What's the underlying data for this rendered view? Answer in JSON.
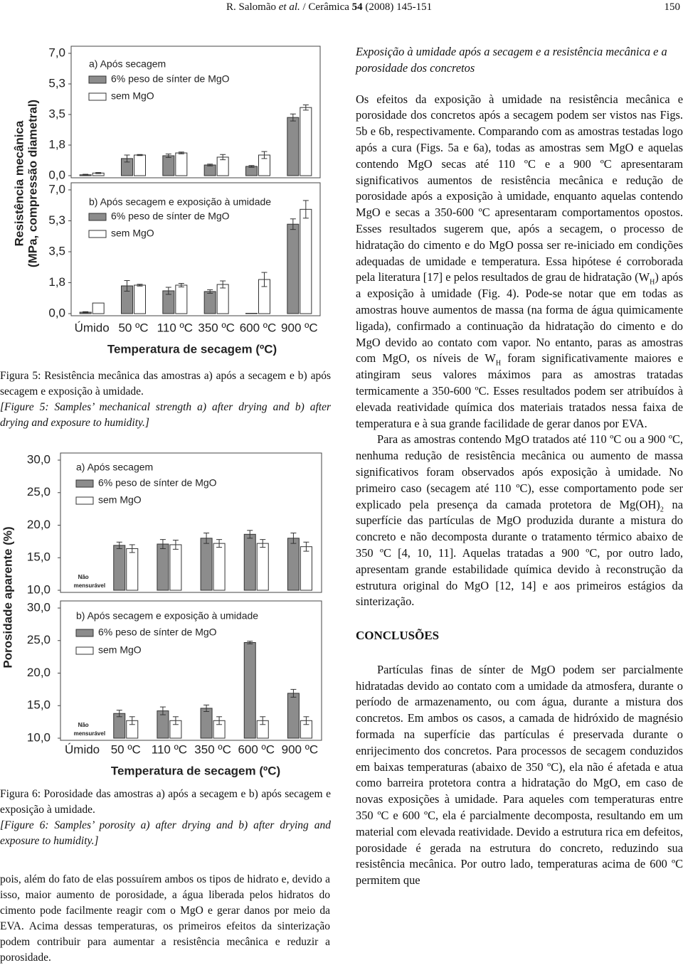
{
  "header": {
    "parts": [
      "R. Salomão ",
      "et al.",
      " / Cerâmica ",
      "54",
      " (2008) 145-151"
    ],
    "page": "150"
  },
  "chart_data": [
    {
      "type": "bar",
      "ylabel": [
        "Resistência mecânica",
        "(MPa, compressão diametral)"
      ],
      "xlabel": "Temperatura de secagem (ºC)",
      "categories": [
        "Úmido",
        "50 ºC",
        "110 ºC",
        "350 ºC",
        "600 ºC",
        "900 ºC"
      ],
      "panels": [
        {
          "title": "a) Após secagem",
          "ylim": [
            0,
            7
          ],
          "yticks": [
            {
              "value": 7,
              "label": "7,0"
            },
            {
              "value": 5.25,
              "label": "5,3"
            },
            {
              "value": 3.5,
              "label": "3,5"
            },
            {
              "value": 1.75,
              "label": "1,8"
            },
            {
              "value": 0,
              "label": "0,0"
            }
          ],
          "series": [
            {
              "name": "6% peso de sínter de MgO",
              "color": "#8c8c8c",
              "values": [
                0.05,
                0.98,
                1.14,
                0.61,
                0.53,
                3.33
              ],
              "errors": [
                0.03,
                0.2,
                0.1,
                0.05,
                0.05,
                0.2
              ]
            },
            {
              "name": "sem MgO",
              "color": "#ffffff",
              "values": [
                0.15,
                1.18,
                1.3,
                1.06,
                1.18,
                3.9
              ],
              "errors": [
                0.03,
                0.03,
                0.05,
                0.15,
                0.2,
                0.15
              ]
            }
          ]
        },
        {
          "title": "b) Após secagem e exposição à umidade",
          "ylim": [
            0,
            7
          ],
          "yticks": [
            {
              "value": 7,
              "label": "7,0"
            },
            {
              "value": 5.25,
              "label": "5,3"
            },
            {
              "value": 3.5,
              "label": "3,5"
            },
            {
              "value": 1.75,
              "label": "1,8"
            },
            {
              "value": 0,
              "label": "0,0"
            }
          ],
          "series": [
            {
              "name": "6% peso de sínter de MgO",
              "color": "#8c8c8c",
              "values": [
                0.08,
                1.57,
                1.29,
                1.25,
                0.02,
                5.06
              ],
              "errors": [
                0.03,
                0.3,
                0.2,
                0.1,
                null,
                0.3
              ]
            },
            {
              "name": "sem MgO",
              "color": "#ffffff",
              "values": [
                0.6,
                1.61,
                1.61,
                1.65,
                1.93,
                5.9
              ],
              "errors": [
                null,
                0.05,
                0.1,
                0.2,
                0.4,
                0.5
              ]
            }
          ]
        }
      ]
    },
    {
      "type": "bar",
      "ylabel": [
        "Porosidade aparente (%)"
      ],
      "xlabel": "Temperatura de secagem (ºC)",
      "categories": [
        "Úmido",
        "50 ºC",
        "110 ºC",
        "350 ºC",
        "600 ºC",
        "900 ºC"
      ],
      "panels": [
        {
          "title": "a) Após secagem",
          "ylim": [
            10,
            30
          ],
          "annotation": [
            "Não",
            "mensurável"
          ],
          "yticks": [
            {
              "value": 30,
              "label": "30,0"
            },
            {
              "value": 25,
              "label": "25,0"
            },
            {
              "value": 20,
              "label": "20,0"
            },
            {
              "value": 15,
              "label": "15,0"
            },
            {
              "value": 10,
              "label": "10,0"
            }
          ],
          "series": [
            {
              "name": "6% peso de sínter de MgO",
              "color": "#8c8c8c",
              "values": [
                null,
                16.9,
                17.1,
                18.0,
                18.6,
                18.0
              ],
              "errors": [
                null,
                0.5,
                0.7,
                0.8,
                0.6,
                0.8
              ]
            },
            {
              "name": "sem MgO",
              "color": "#ffffff",
              "values": [
                null,
                16.4,
                17.0,
                17.2,
                17.2,
                16.7
              ],
              "errors": [
                null,
                0.6,
                0.7,
                0.6,
                0.6,
                0.7
              ]
            }
          ]
        },
        {
          "title": "b) Após secagem e exposição à umidade",
          "ylim": [
            10,
            30
          ],
          "annotation": [
            "Não",
            "mensurável"
          ],
          "yticks": [
            {
              "value": 30,
              "label": "30,0"
            },
            {
              "value": 25,
              "label": "25,0"
            },
            {
              "value": 20,
              "label": "20,0"
            },
            {
              "value": 15,
              "label": "15,0"
            },
            {
              "value": 10,
              "label": "10,0"
            }
          ],
          "series": [
            {
              "name": "6% peso de sínter de MgO",
              "color": "#8c8c8c",
              "values": [
                null,
                13.8,
                14.2,
                14.6,
                24.7,
                16.9
              ],
              "errors": [
                null,
                0.5,
                0.6,
                0.5,
                0.2,
                0.6
              ]
            },
            {
              "name": "sem MgO",
              "color": "#ffffff",
              "values": [
                null,
                12.7,
                12.7,
                12.7,
                12.7,
                12.7
              ],
              "errors": [
                null,
                0.6,
                0.6,
                0.6,
                0.6,
                0.6
              ]
            }
          ]
        }
      ]
    }
  ],
  "captions": [
    {
      "pt": "Figura 5: Resistência mecânica das amostras a) após a secagem e b) após secagem e exposição à umidade.",
      "en": "[Figure 5: Samples’ mechanical strength a) after drying and b) after drying and exposure to humidity.]"
    },
    {
      "pt": "Figura 6: Porosidade das amostras a) após a secagem e b) após secagem e exposição à umidade.",
      "en": "[Figure 6: Samples’ porosity a) after drying and b) after drying and exposure to humidity.]"
    }
  ],
  "left_column": {
    "paragraphs": [
      [
        "pois, além do fato de elas possuírem ambos os tipos de hidrato e, devido a isso, maior aumento de porosidade, a água liberada pelos hidratos do cimento pode facilmente reagir com o MgO e gerar danos por meio da EVA. Acima dessas temperaturas, os primeiros efeitos da sinterização podem contribuir para aumentar a resistência mecânica e reduzir a porosidade."
      ]
    ]
  },
  "right_column": {
    "section_title": "Exposição à umidade após a secagem e a resistência mecânica e a porosidade dos concretos",
    "paragraphs": [
      [
        "Os efeitos da exposição à umidade na resistência mecânica e porosidade dos concretos após a secagem podem ser vistos nas Figs. 5b e 6b, respectivamente. Comparando com as amostras testadas logo após a cura (Figs. 5a e 6a), todas as amostras sem MgO e aquelas contendo MgO secas até 110 ºC e a 900 ºC apresentaram significativos aumentos de resistência mecânica e redução de porosidade após a exposição à umidade, enquanto aquelas contendo MgO e secas a 350-600 ºC apresentaram comportamentos opostos. Esses resultados sugerem que, após a secagem, o processo de hidratação do cimento e do MgO possa ser re-iniciado em condições adequadas de umidade e temperatura. Essa hipótese é corroborada pela literatura [17] e pelos resultados de grau de hidratação (W",
        {
          "sub": "H"
        },
        ") após a exposição à umidade (Fig. 4). Pode-se notar que em todas as amostras houve aumentos de massa (na forma de água quimicamente ligada), confirmado a continuação da hidratação do cimento e do MgO devido ao contato com vapor. No entanto, paras as amostras com MgO, os níveis de W",
        {
          "sub": "H"
        },
        " foram significativamente maiores e atingiram seus valores máximos para as amostras tratadas termicamente a 350-600 ºC. Esses resultados podem ser atribuídos à elevada reatividade química dos materiais tratados nessa faixa de temperatura e à sua grande facilidade de gerar danos por EVA."
      ],
      [
        "Para as amostras contendo MgO tratados até 110 ºC ou a 900 ºC, nenhuma redução de resistência mecânica ou aumento de massa significativos foram observados após exposição à umidade. No primeiro caso (secagem até 110 ºC), esse comportamento pode ser explicado pela presença da camada protetora de Mg(OH)",
        {
          "sub": "2"
        },
        " na superfície das partículas de MgO produzida durante a mistura do concreto e não decomposta durante o tratamento térmico abaixo de 350 ºC [4, 10, 11]. Aquelas tratadas a 900 ºC, por outro lado, apresentam grande estabilidade química devido à reconstrução da estrutura original do MgO [12, 14] e aos primeiros estágios da sinterização."
      ]
    ],
    "heading": "CONCLUSÕES",
    "conclusion": [
      [
        "Partículas finas de sínter de MgO podem ser parcialmente hidratadas devido ao contato com a umidade da atmosfera, durante o período de armazenamento, ou com água, durante a mistura dos concretos. Em ambos os casos, a camada de hidróxido de magnésio formada na superfície das partículas é preservada durante o enrijecimento dos concretos. Para processos de secagem conduzidos em baixas temperaturas (abaixo de 350 ºC), ela não é afetada e atua como barreira protetora contra a hidratação do MgO, em caso de novas exposições à umidade. Para aqueles com temperaturas entre 350 ºC e 600 ºC, ela é parcialmente decomposta, resultando em um material com elevada reatividade. Devido a estrutura rica em defeitos, porosidade é gerada na estrutura do concreto, reduzindo sua resistência mecânica. Por outro lado, temperaturas acima de 600 ºC permitem que"
      ]
    ]
  }
}
